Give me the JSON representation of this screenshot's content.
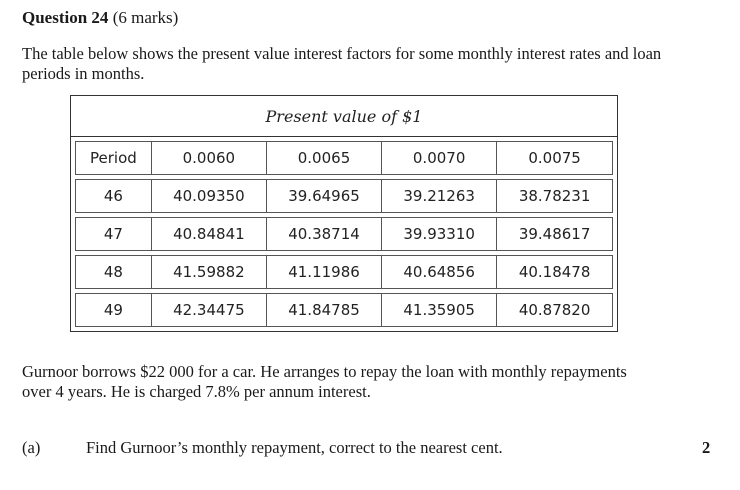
{
  "question": {
    "label": "Question 24",
    "marks": "(6 marks)"
  },
  "intro": "The table below shows the present value interest factors for some monthly interest rates and loan periods in months.",
  "table": {
    "caption": "Present value of $1",
    "header": [
      "Period",
      "0.0060",
      "0.0065",
      "0.0070",
      "0.0075"
    ],
    "rows": [
      [
        "46",
        "40.09350",
        "39.64965",
        "39.21263",
        "38.78231"
      ],
      [
        "47",
        "40.84841",
        "40.38714",
        "39.93310",
        "39.48617"
      ],
      [
        "48",
        "41.59882",
        "41.11986",
        "40.64856",
        "40.18478"
      ],
      [
        "49",
        "42.34475",
        "41.84785",
        "41.35905",
        "40.87820"
      ]
    ]
  },
  "problem": "Gurnoor borrows $22 000 for a car. He arranges to repay the loan with monthly repayments over 4 years. He is charged 7.8% per annum interest.",
  "part_a": {
    "label": "(a)",
    "text": "Find Gurnoor’s monthly repayment, correct to the nearest cent.",
    "marks": "2"
  }
}
